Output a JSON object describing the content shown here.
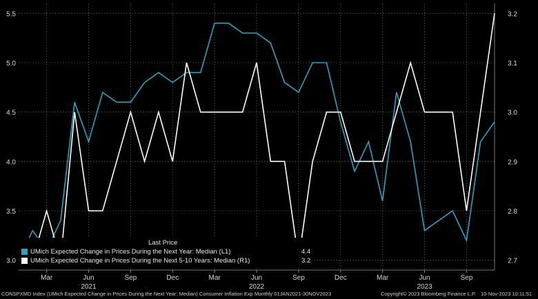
{
  "chart_data": {
    "type": "line",
    "x_start": "2021-01",
    "x_end": "2023-11",
    "series": [
      {
        "name": "UMich Expected Change in Prices During the Next Year: Median",
        "axis": "left",
        "color": "#27a3c4",
        "values": [
          3.0,
          3.3,
          3.1,
          3.4,
          4.6,
          4.2,
          4.7,
          4.6,
          4.6,
          4.8,
          4.9,
          4.8,
          4.9,
          4.9,
          5.4,
          5.4,
          5.3,
          5.3,
          5.2,
          4.8,
          4.7,
          5.0,
          5.0,
          4.4,
          3.9,
          4.2,
          3.6,
          4.7,
          4.2,
          3.3,
          3.4,
          3.5,
          3.2,
          4.2,
          4.4
        ]
      },
      {
        "name": "UMich Expected Change in Prices During the Next 5-10 Years: Median",
        "axis": "right",
        "color": "#ffffff",
        "values": [
          2.7,
          2.7,
          2.8,
          2.7,
          3.0,
          2.8,
          2.8,
          2.9,
          3.0,
          2.9,
          3.0,
          2.9,
          3.1,
          3.0,
          3.0,
          3.0,
          3.0,
          3.1,
          2.9,
          2.9,
          2.7,
          2.9,
          3.0,
          3.0,
          2.9,
          2.9,
          2.9,
          3.0,
          3.1,
          3.0,
          3.0,
          3.0,
          2.8,
          3.0,
          3.2
        ]
      }
    ],
    "left_axis": {
      "ylim": [
        2.9,
        5.6
      ],
      "ticks": [
        "3.0",
        "3.5",
        "4.0",
        "4.5",
        "5.0",
        "5.5"
      ]
    },
    "right_axis": {
      "ylim": [
        2.68,
        3.22
      ],
      "ticks": [
        "2.7",
        "2.8",
        "2.9",
        "3.0",
        "3.1",
        "3.2"
      ]
    },
    "x_month_labels": [
      {
        "index": 2,
        "label": "Mar"
      },
      {
        "index": 5,
        "label": "Jun"
      },
      {
        "index": 8,
        "label": "Sep"
      },
      {
        "index": 11,
        "label": "Dec"
      },
      {
        "index": 14,
        "label": "Mar"
      },
      {
        "index": 17,
        "label": "Jun"
      },
      {
        "index": 20,
        "label": "Sep"
      },
      {
        "index": 23,
        "label": "Dec"
      },
      {
        "index": 26,
        "label": "Mar"
      },
      {
        "index": 29,
        "label": "Jun"
      },
      {
        "index": 32,
        "label": "Sep"
      }
    ],
    "x_year_labels": [
      {
        "index": 5,
        "label": "2021"
      },
      {
        "index": 17,
        "label": "2022"
      },
      {
        "index": 29,
        "label": "2023"
      }
    ],
    "grid": true,
    "legend": {
      "position": "bottom-left",
      "header": "Last Price",
      "entries": [
        {
          "label": "UMich Expected Change in Prices During the Next Year: Median  (L1)",
          "value": "4.4",
          "color": "#27a3c4"
        },
        {
          "label": "UMich Expected Change in Prices During the Next 5-10 Years: Median  (R1)",
          "value": "3.2",
          "color": "#ffffff"
        }
      ]
    }
  },
  "footer": {
    "left": "CONSPXMD Index (UMich Expected Change in Prices During the Next Year: Median) Consumer Inflation Exp  Monthly 01JAN2021-30NOV2023",
    "center": "Copyright© 2023 Bloomberg Finance L.P.",
    "right": "10-Nov-2023 10:11:51"
  }
}
